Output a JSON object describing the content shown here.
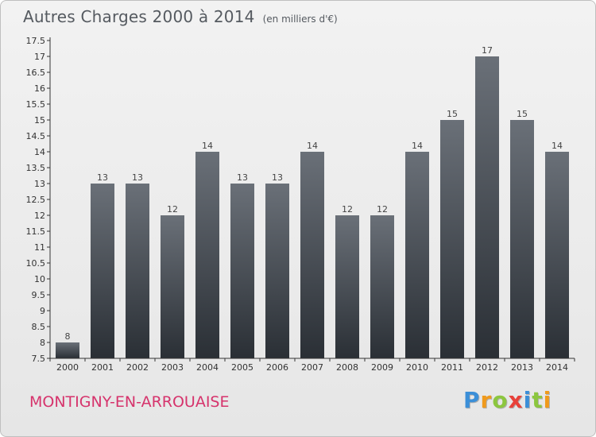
{
  "header": {
    "title": "Autres Charges 2000 à 2014",
    "subtitle": "(en milliers d'€)"
  },
  "footer": {
    "commune": "MONTIGNY-EN-ARROUAISE",
    "logo_letters": [
      "P",
      "r",
      "o",
      "x",
      "i",
      "t",
      "i"
    ]
  },
  "colors": {
    "bar_top": "#6a7078",
    "bar_bottom": "#2a2f35",
    "commune": "#d6336c",
    "axis": "#333333"
  },
  "chart_data": {
    "type": "bar",
    "title": "Autres Charges 2000 à 2014",
    "subtitle": "(en milliers d'€)",
    "xlabel": "",
    "ylabel": "",
    "categories": [
      "2000",
      "2001",
      "2002",
      "2003",
      "2004",
      "2005",
      "2006",
      "2007",
      "2008",
      "2009",
      "2010",
      "2011",
      "2012",
      "2013",
      "2014"
    ],
    "values": [
      8,
      13,
      13,
      12,
      14,
      13,
      13,
      14,
      12,
      12,
      14,
      15,
      17,
      15,
      14
    ],
    "ylim": [
      7.5,
      17.5
    ],
    "yticks": [
      "7.5",
      "8",
      "8.5",
      "9",
      "9.5",
      "10",
      "10.5",
      "11",
      "11.5",
      "12",
      "12.5",
      "13",
      "13.5",
      "14",
      "14.5",
      "15",
      "15.5",
      "16",
      "16.5",
      "17",
      "17.5"
    ],
    "grid": false
  }
}
